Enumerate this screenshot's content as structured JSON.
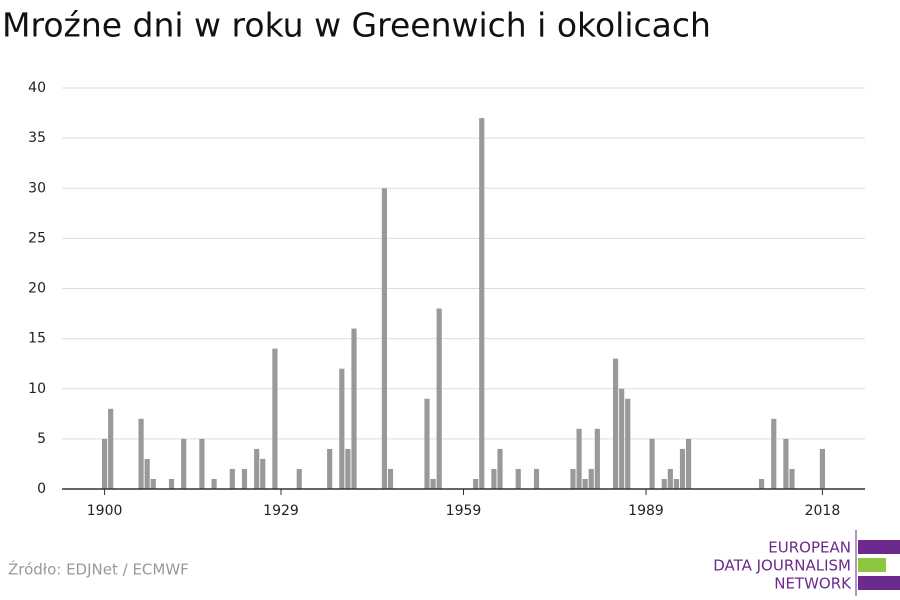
{
  "chart_data": {
    "type": "bar",
    "title": "Mroźne dni w roku w Greenwich i okolicach",
    "source": "Źródło: EDJNet / ECMWF",
    "logo": [
      "EUROPEAN",
      "DATA JOURNALISM",
      "NETWORK"
    ],
    "color": "#999999",
    "x": [
      1900,
      1901,
      1906,
      1907,
      1908,
      1911,
      1913,
      1916,
      1918,
      1921,
      1923,
      1925,
      1926,
      1928,
      1932,
      1937,
      1939,
      1940,
      1941,
      1946,
      1947,
      1953,
      1954,
      1955,
      1961,
      1962,
      1964,
      1965,
      1968,
      1971,
      1977,
      1978,
      1979,
      1980,
      1981,
      1984,
      1985,
      1986,
      1990,
      1992,
      1993,
      1994,
      1995,
      1996,
      2008,
      2010,
      2012,
      2013,
      2018
    ],
    "values": [
      5,
      8,
      7,
      3,
      1,
      1,
      5,
      5,
      1,
      2,
      2,
      4,
      3,
      14,
      2,
      4,
      12,
      4,
      16,
      30,
      2,
      9,
      1,
      18,
      1,
      37,
      2,
      4,
      2,
      2,
      2,
      6,
      1,
      2,
      6,
      13,
      10,
      9,
      5,
      1,
      2,
      1,
      4,
      5,
      1,
      7,
      5,
      2,
      4
    ],
    "xlim": [
      1893,
      2025
    ],
    "xticks": [
      1900,
      1929,
      1959,
      1989,
      2018
    ],
    "ylim": [
      0,
      40
    ],
    "yticks": [
      0,
      5,
      10,
      15,
      20,
      25,
      30,
      35,
      40
    ],
    "grid": true
  }
}
